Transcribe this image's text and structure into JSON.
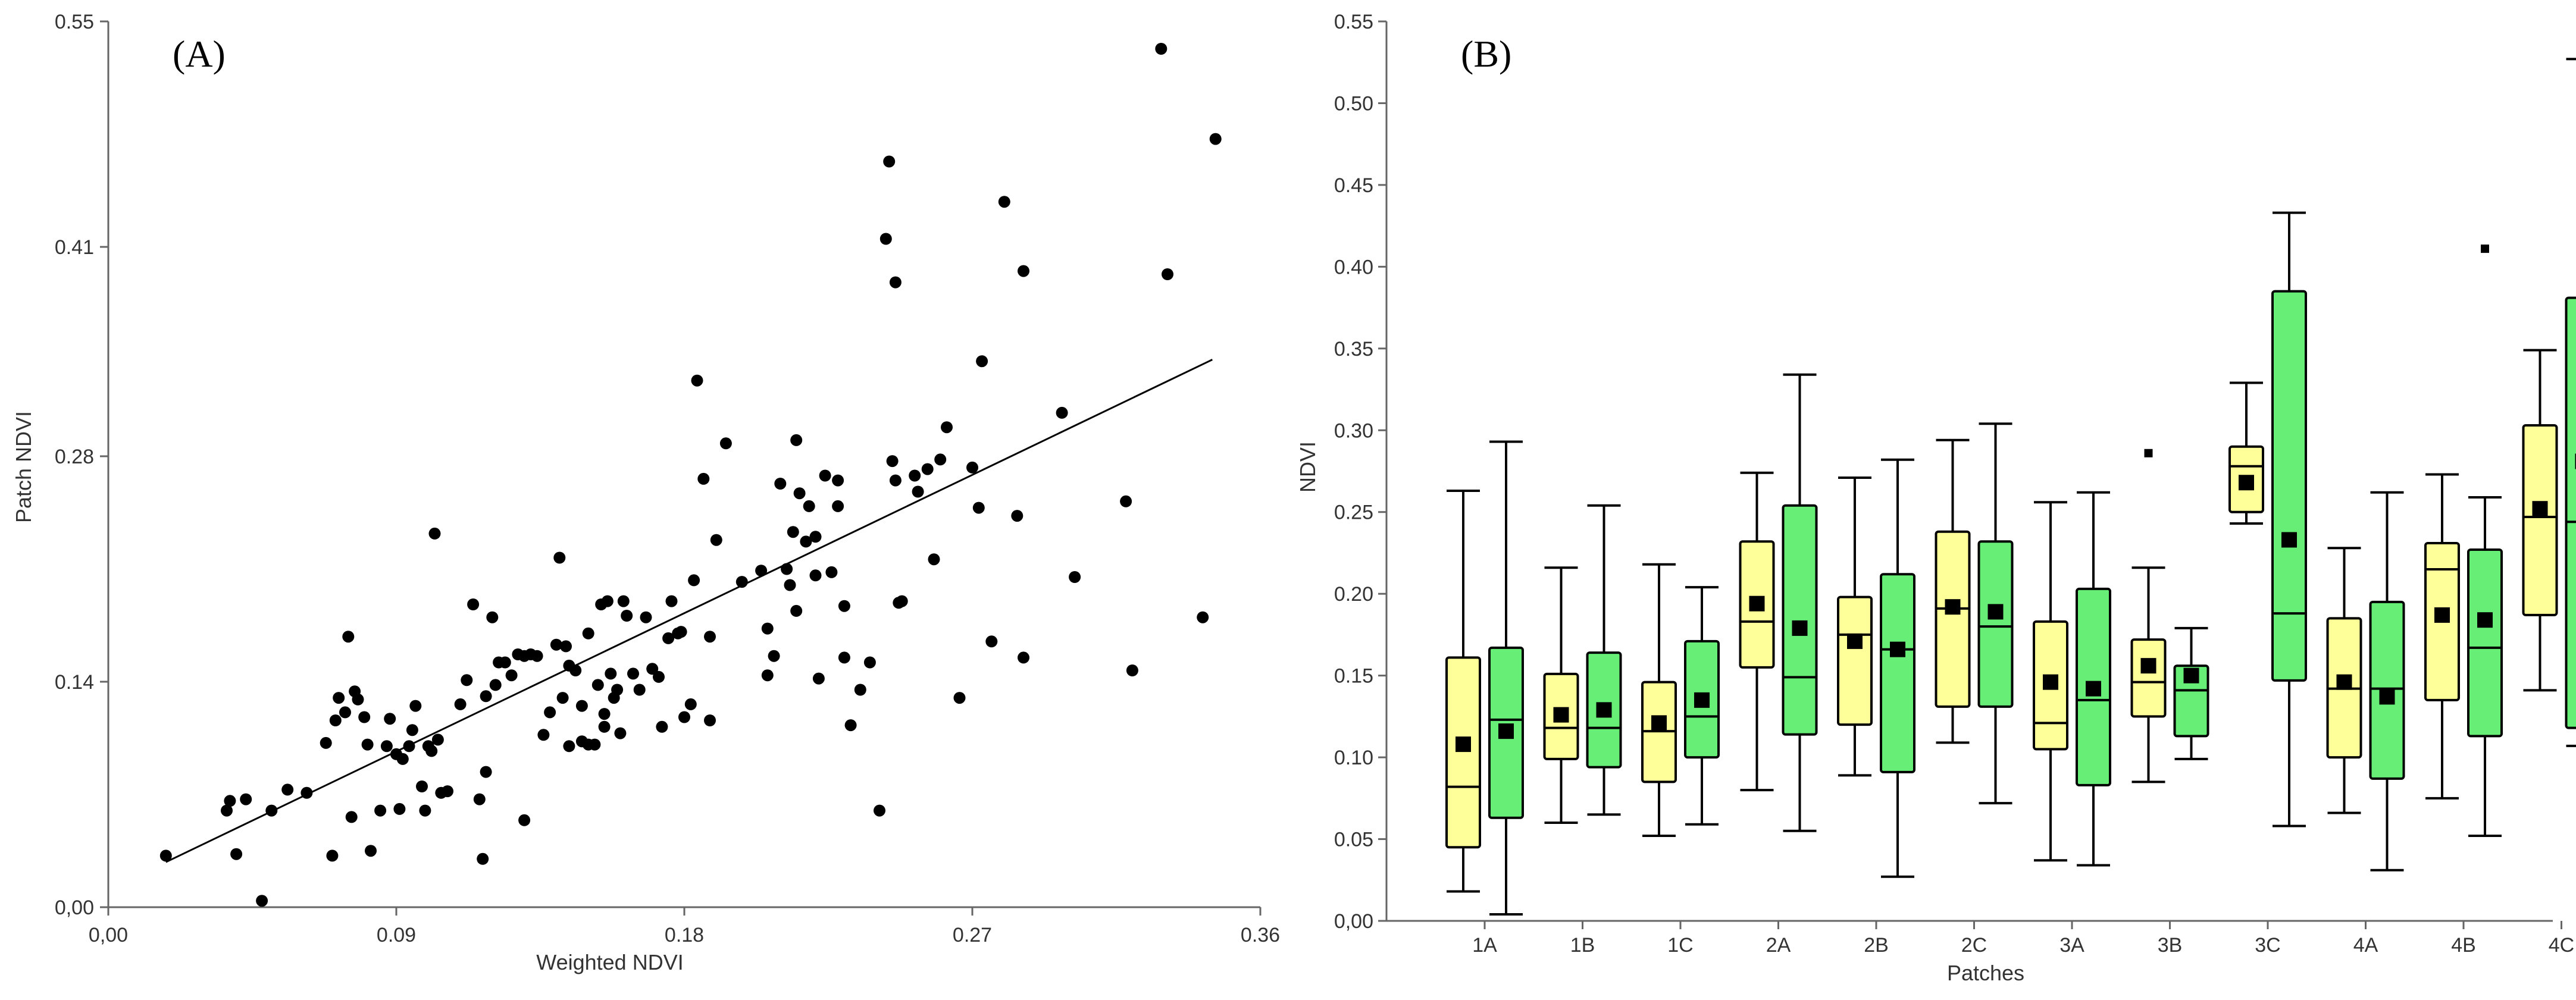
{
  "colors": {
    "axis": "#666666",
    "text": "#333333",
    "point": "#000000",
    "fit_line": "#000000",
    "box_yellow": "#ffff99",
    "box_green": "#66ee77",
    "box_stroke": "#000000"
  },
  "chart_data": [
    {
      "type": "scatter",
      "panel_label": "(A)",
      "xlabel": "Weighted NDVI",
      "ylabel": "Patch NDVI",
      "xlim": [
        0,
        0.36
      ],
      "ylim": [
        0,
        0.55
      ],
      "xticks": [
        0,
        0.09,
        0.18,
        0.27,
        0.36
      ],
      "xtick_labels": [
        "0,00",
        "0.09",
        "0.18",
        "0.27",
        "0.36"
      ],
      "yticks": [
        0,
        0.14,
        0.28,
        0.41,
        0.55
      ],
      "ytick_labels": [
        "0,00",
        "0.14",
        "0.28",
        "0.41",
        "0.55"
      ],
      "fit_line": {
        "x": [
          0.018,
          0.345
        ],
        "y": [
          0.028,
          0.34
        ]
      },
      "points": [
        [
          0.018,
          0.032
        ],
        [
          0.037,
          0.06
        ],
        [
          0.038,
          0.066
        ],
        [
          0.04,
          0.033
        ],
        [
          0.043,
          0.067
        ],
        [
          0.048,
          0.004
        ],
        [
          0.051,
          0.06
        ],
        [
          0.056,
          0.073
        ],
        [
          0.062,
          0.071
        ],
        [
          0.068,
          0.102
        ],
        [
          0.07,
          0.032
        ],
        [
          0.071,
          0.116
        ],
        [
          0.072,
          0.13
        ],
        [
          0.074,
          0.121
        ],
        [
          0.075,
          0.168
        ],
        [
          0.076,
          0.056
        ],
        [
          0.077,
          0.134
        ],
        [
          0.078,
          0.129
        ],
        [
          0.08,
          0.118
        ],
        [
          0.081,
          0.101
        ],
        [
          0.082,
          0.035
        ],
        [
          0.085,
          0.06
        ],
        [
          0.087,
          0.1
        ],
        [
          0.088,
          0.117
        ],
        [
          0.09,
          0.095
        ],
        [
          0.091,
          0.061
        ],
        [
          0.092,
          0.092
        ],
        [
          0.094,
          0.1
        ],
        [
          0.095,
          0.11
        ],
        [
          0.096,
          0.125
        ],
        [
          0.098,
          0.075
        ],
        [
          0.099,
          0.06
        ],
        [
          0.1,
          0.1
        ],
        [
          0.101,
          0.097
        ],
        [
          0.102,
          0.232
        ],
        [
          0.103,
          0.104
        ],
        [
          0.104,
          0.071
        ],
        [
          0.106,
          0.072
        ],
        [
          0.11,
          0.126
        ],
        [
          0.112,
          0.141
        ],
        [
          0.114,
          0.188
        ],
        [
          0.116,
          0.067
        ],
        [
          0.117,
          0.03
        ],
        [
          0.118,
          0.131
        ],
        [
          0.118,
          0.084
        ],
        [
          0.12,
          0.18
        ],
        [
          0.121,
          0.138
        ],
        [
          0.122,
          0.152
        ],
        [
          0.124,
          0.152
        ],
        [
          0.126,
          0.144
        ],
        [
          0.128,
          0.157
        ],
        [
          0.13,
          0.156
        ],
        [
          0.13,
          0.054
        ],
        [
          0.132,
          0.157
        ],
        [
          0.134,
          0.156
        ],
        [
          0.136,
          0.107
        ],
        [
          0.138,
          0.121
        ],
        [
          0.14,
          0.163
        ],
        [
          0.141,
          0.217
        ],
        [
          0.142,
          0.13
        ],
        [
          0.143,
          0.162
        ],
        [
          0.144,
          0.1
        ],
        [
          0.144,
          0.15
        ],
        [
          0.146,
          0.147
        ],
        [
          0.148,
          0.125
        ],
        [
          0.148,
          0.103
        ],
        [
          0.15,
          0.17
        ],
        [
          0.15,
          0.101
        ],
        [
          0.152,
          0.101
        ],
        [
          0.153,
          0.138
        ],
        [
          0.154,
          0.188
        ],
        [
          0.155,
          0.12
        ],
        [
          0.155,
          0.112
        ],
        [
          0.156,
          0.19
        ],
        [
          0.157,
          0.145
        ],
        [
          0.158,
          0.13
        ],
        [
          0.159,
          0.135
        ],
        [
          0.16,
          0.108
        ],
        [
          0.161,
          0.19
        ],
        [
          0.162,
          0.181
        ],
        [
          0.164,
          0.145
        ],
        [
          0.166,
          0.135
        ],
        [
          0.168,
          0.18
        ],
        [
          0.17,
          0.148
        ],
        [
          0.172,
          0.143
        ],
        [
          0.173,
          0.112
        ],
        [
          0.175,
          0.167
        ],
        [
          0.176,
          0.19
        ],
        [
          0.178,
          0.17
        ],
        [
          0.179,
          0.171
        ],
        [
          0.18,
          0.118
        ],
        [
          0.182,
          0.126
        ],
        [
          0.183,
          0.203
        ],
        [
          0.184,
          0.327
        ],
        [
          0.186,
          0.266
        ],
        [
          0.188,
          0.116
        ],
        [
          0.188,
          0.168
        ],
        [
          0.19,
          0.228
        ],
        [
          0.193,
          0.288
        ],
        [
          0.198,
          0.202
        ],
        [
          0.204,
          0.209
        ],
        [
          0.206,
          0.173
        ],
        [
          0.206,
          0.144
        ],
        [
          0.208,
          0.156
        ],
        [
          0.21,
          0.263
        ],
        [
          0.212,
          0.21
        ],
        [
          0.213,
          0.2
        ],
        [
          0.214,
          0.233
        ],
        [
          0.215,
          0.29
        ],
        [
          0.215,
          0.184
        ],
        [
          0.216,
          0.257
        ],
        [
          0.218,
          0.227
        ],
        [
          0.219,
          0.249
        ],
        [
          0.221,
          0.23
        ],
        [
          0.221,
          0.206
        ],
        [
          0.222,
          0.142
        ],
        [
          0.224,
          0.268
        ],
        [
          0.226,
          0.208
        ],
        [
          0.228,
          0.265
        ],
        [
          0.228,
          0.249
        ],
        [
          0.23,
          0.187
        ],
        [
          0.23,
          0.155
        ],
        [
          0.232,
          0.113
        ],
        [
          0.235,
          0.135
        ],
        [
          0.238,
          0.152
        ],
        [
          0.241,
          0.06
        ],
        [
          0.243,
          0.415
        ],
        [
          0.244,
          0.463
        ],
        [
          0.245,
          0.277
        ],
        [
          0.246,
          0.388
        ],
        [
          0.246,
          0.265
        ],
        [
          0.247,
          0.189
        ],
        [
          0.248,
          0.19
        ],
        [
          0.252,
          0.268
        ],
        [
          0.253,
          0.258
        ],
        [
          0.256,
          0.272
        ],
        [
          0.258,
          0.216
        ],
        [
          0.26,
          0.278
        ],
        [
          0.262,
          0.298
        ],
        [
          0.266,
          0.13
        ],
        [
          0.27,
          0.273
        ],
        [
          0.272,
          0.248
        ],
        [
          0.273,
          0.339
        ],
        [
          0.276,
          0.165
        ],
        [
          0.28,
          0.438
        ],
        [
          0.284,
          0.243
        ],
        [
          0.286,
          0.395
        ],
        [
          0.286,
          0.155
        ],
        [
          0.298,
          0.307
        ],
        [
          0.302,
          0.205
        ],
        [
          0.318,
          0.252
        ],
        [
          0.32,
          0.147
        ],
        [
          0.329,
          0.533
        ],
        [
          0.331,
          0.393
        ],
        [
          0.342,
          0.18
        ],
        [
          0.346,
          0.477
        ]
      ]
    },
    {
      "type": "box",
      "panel_label": "(B)",
      "xlabel": "Patches",
      "ylabel": "NDVI",
      "ylim": [
        0,
        0.55
      ],
      "yticks": [
        0,
        0.05,
        0.1,
        0.15,
        0.2,
        0.25,
        0.3,
        0.35,
        0.4,
        0.45,
        0.5,
        0.55
      ],
      "ytick_labels": [
        "0,00",
        "0.05",
        "0.10",
        "0.15",
        "0.20",
        "0.25",
        "0.30",
        "0.35",
        "0.40",
        "0.45",
        "0.50",
        "0.55"
      ],
      "categories": [
        "1A",
        "1B",
        "1C",
        "2A",
        "2B",
        "2C",
        "3A",
        "3B",
        "3C",
        "4A",
        "4B",
        "4C"
      ],
      "series": [
        {
          "name": "yellow",
          "boxes": [
            {
              "min": 0.018,
              "q1": 0.045,
              "median": 0.082,
              "q3": 0.161,
              "max": 0.263,
              "mean": 0.108
            },
            {
              "min": 0.06,
              "q1": 0.099,
              "median": 0.118,
              "q3": 0.151,
              "max": 0.216,
              "mean": 0.126
            },
            {
              "min": 0.052,
              "q1": 0.085,
              "median": 0.116,
              "q3": 0.146,
              "max": 0.218,
              "mean": 0.121
            },
            {
              "min": 0.08,
              "q1": 0.155,
              "median": 0.183,
              "q3": 0.232,
              "max": 0.274,
              "mean": 0.194
            },
            {
              "min": 0.089,
              "q1": 0.12,
              "median": 0.175,
              "q3": 0.198,
              "max": 0.271,
              "mean": 0.171
            },
            {
              "min": 0.109,
              "q1": 0.131,
              "median": 0.191,
              "q3": 0.238,
              "max": 0.294,
              "mean": 0.192
            },
            {
              "min": 0.037,
              "q1": 0.105,
              "median": 0.121,
              "q3": 0.183,
              "max": 0.256,
              "mean": 0.146
            },
            {
              "min": 0.085,
              "q1": 0.125,
              "median": 0.146,
              "q3": 0.172,
              "max": 0.216,
              "mean": 0.156,
              "outliers": [
                0.286
              ]
            },
            {
              "min": 0.243,
              "q1": 0.25,
              "median": 0.278,
              "q3": 0.29,
              "max": 0.329,
              "mean": 0.268
            },
            {
              "min": 0.066,
              "q1": 0.1,
              "median": 0.142,
              "q3": 0.185,
              "max": 0.228,
              "mean": 0.146
            },
            {
              "min": 0.075,
              "q1": 0.135,
              "median": 0.215,
              "q3": 0.231,
              "max": 0.273,
              "mean": 0.187
            },
            {
              "min": 0.141,
              "q1": 0.187,
              "median": 0.247,
              "q3": 0.303,
              "max": 0.349,
              "mean": 0.252
            }
          ]
        },
        {
          "name": "green",
          "boxes": [
            {
              "min": 0.004,
              "q1": 0.063,
              "median": 0.123,
              "q3": 0.167,
              "max": 0.293,
              "mean": 0.116
            },
            {
              "min": 0.065,
              "q1": 0.094,
              "median": 0.118,
              "q3": 0.164,
              "max": 0.254,
              "mean": 0.129
            },
            {
              "min": 0.059,
              "q1": 0.1,
              "median": 0.125,
              "q3": 0.171,
              "max": 0.204,
              "mean": 0.135
            },
            {
              "min": 0.055,
              "q1": 0.114,
              "median": 0.149,
              "q3": 0.254,
              "max": 0.334,
              "mean": 0.179
            },
            {
              "min": 0.027,
              "q1": 0.091,
              "median": 0.166,
              "q3": 0.212,
              "max": 0.282,
              "mean": 0.166
            },
            {
              "min": 0.072,
              "q1": 0.131,
              "median": 0.18,
              "q3": 0.232,
              "max": 0.304,
              "mean": 0.189
            },
            {
              "min": 0.034,
              "q1": 0.083,
              "median": 0.135,
              "q3": 0.203,
              "max": 0.262,
              "mean": 0.142
            },
            {
              "min": 0.099,
              "q1": 0.113,
              "median": 0.141,
              "q3": 0.156,
              "max": 0.179,
              "mean": 0.15
            },
            {
              "min": 0.058,
              "q1": 0.147,
              "median": 0.188,
              "q3": 0.385,
              "max": 0.433,
              "mean": 0.233
            },
            {
              "min": 0.031,
              "q1": 0.087,
              "median": 0.142,
              "q3": 0.195,
              "max": 0.262,
              "mean": 0.137
            },
            {
              "min": 0.052,
              "q1": 0.113,
              "median": 0.167,
              "q3": 0.227,
              "max": 0.259,
              "mean": 0.184,
              "outliers": [
                0.411
              ]
            },
            {
              "min": 0.107,
              "q1": 0.118,
              "median": 0.244,
              "q3": 0.381,
              "max": 0.527,
              "mean": 0.281
            }
          ]
        }
      ]
    }
  ]
}
